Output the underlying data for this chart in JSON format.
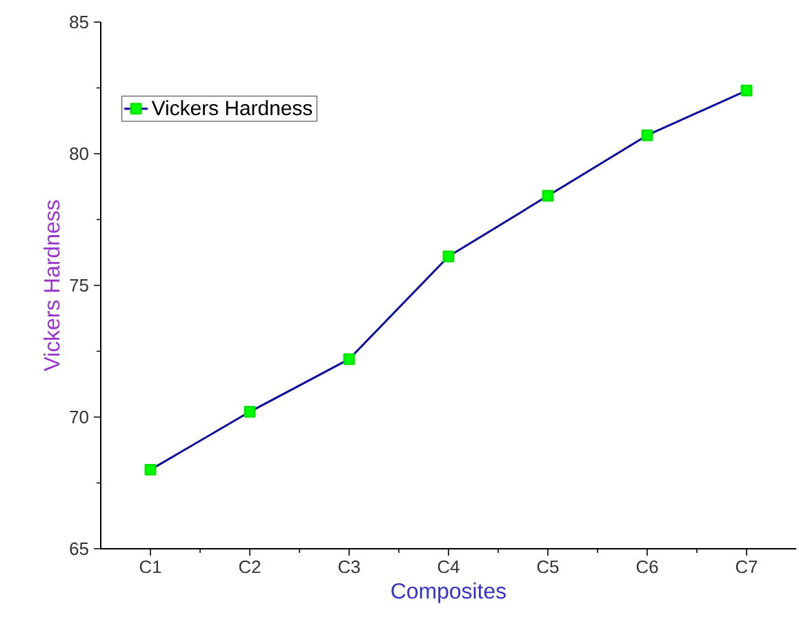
{
  "chart_data": {
    "type": "line",
    "xlabel": "Composites",
    "ylabel": "Vickers Hardness",
    "categories": [
      "C1",
      "C2",
      "C3",
      "C4",
      "C5",
      "C6",
      "C7"
    ],
    "series": [
      {
        "name": "Vickers Hardness",
        "color": "#0a0a9c",
        "values": [
          68.0,
          70.2,
          72.2,
          76.1,
          78.4,
          80.7,
          82.4
        ]
      }
    ],
    "ylim": [
      65,
      85
    ],
    "yticks": [
      65,
      70,
      75,
      80,
      85
    ],
    "legend": "top left",
    "marker": "square",
    "line_style": "solid",
    "grid": false
  }
}
